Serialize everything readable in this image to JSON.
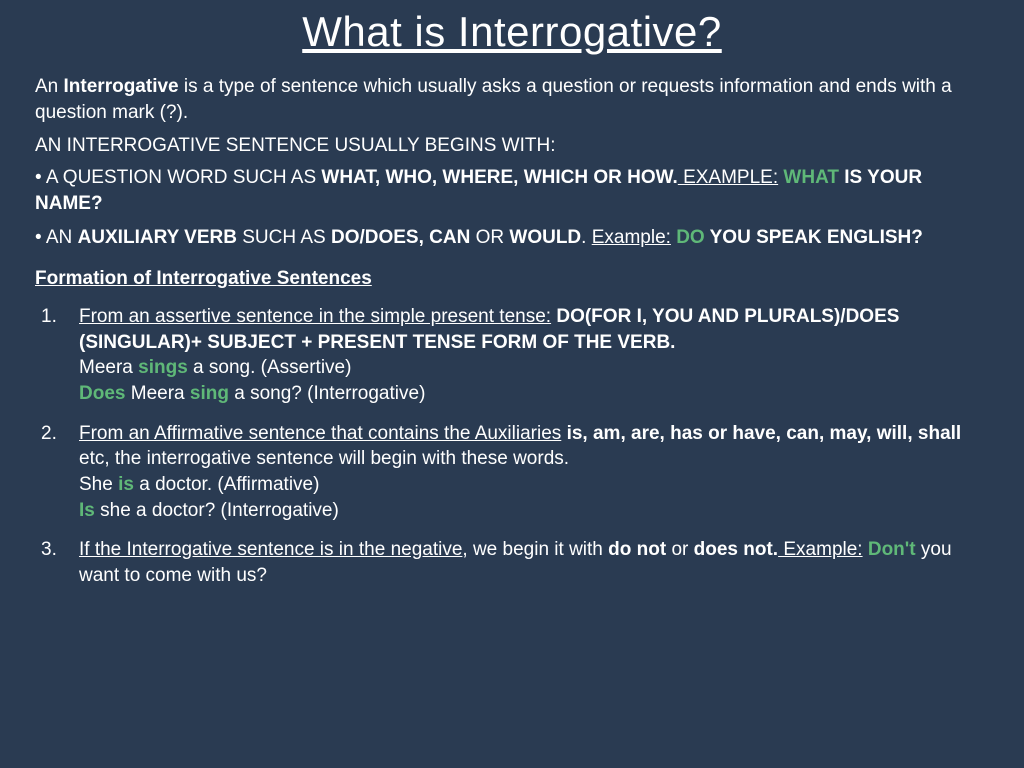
{
  "colors": {
    "background": "#2a3b52",
    "text": "#ffffff",
    "accent": "#5fb878"
  },
  "typography": {
    "title_fontsize": 42,
    "body_fontsize": 19,
    "font_family": "Arial"
  },
  "title": "What is Interrogative?",
  "intro": {
    "p1a": "An ",
    "p1b": "Interrogative",
    "p1c": "  is a type of sentence which usually asks a question or requests information and  ends with a question mark (?).",
    "p2": "An interrogative sentence usually begins with:"
  },
  "bullets": {
    "b1": {
      "prefix": "• a question word such as ",
      "bold": "what, who, where, which or how.",
      "exLabel": " Example:",
      "exAccent": " What",
      "exTail": " is your name?"
    },
    "b2": {
      "prefix": "• an ",
      "aux": "auxiliary verb",
      "mid": " such as ",
      "bold2": "do/does, can",
      "or": " or ",
      "would": "would",
      "dot": ". ",
      "exLabel": "Example:",
      "exAccent": " Do",
      "exTail": " you speak English?"
    }
  },
  "formation": {
    "heading": "Formation of Interrogative Sentences",
    "i1": {
      "underline": "From an assertive sentence in the simple present tense:",
      "bold": " Do(for I, You and Plurals)/Does (Singular)+ Subject + Present tense form of the verb.",
      "ex1a": "Meera ",
      "ex1accent": "sings",
      "ex1b": " a song. (Assertive)",
      "ex2a": "Does",
      "ex2b": " Meera ",
      "ex2accent": "sing",
      "ex2c": " a song? (Interrogative)"
    },
    "i2": {
      "underline": "From an Affirmative sentence that contains the Auxiliaries",
      "bold": " is, am, are, has or have, can, may, will, shall",
      "rest": " etc, the interrogative sentence will begin with these words.",
      "ex1a": "She ",
      "ex1accent": "is",
      "ex1b": " a doctor. (Affirmative)",
      "ex2accent": "Is",
      "ex2b": " she a doctor? (Interrogative)"
    },
    "i3": {
      "underline": "If the Interrogative sentence is in the negative",
      "rest1": ", we begin it with ",
      "bold": "do not",
      "or": " or ",
      "bold2": "does not.",
      "exLabel": " Example:",
      "exAccent": " Don't",
      "exTail": " you want to come with us?"
    }
  }
}
